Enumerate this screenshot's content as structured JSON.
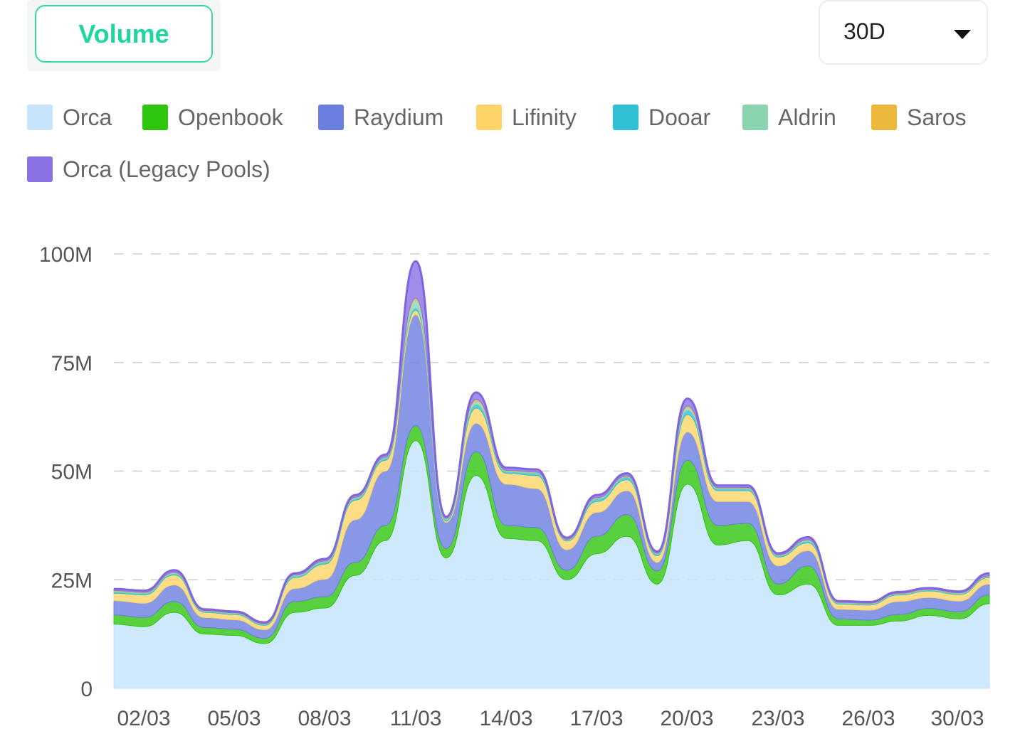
{
  "tabs": {
    "active_label": "Volume"
  },
  "range_select": {
    "value": "30D"
  },
  "icons": {
    "dropdown": "caret-down-icon"
  },
  "colors": {
    "accent": "#21d5a0",
    "Orca": "#c6e4fb",
    "Openbook": "#2fc60f",
    "Raydium": "#6a7ee0",
    "Lifinity": "#fcd467",
    "Dooar": "#2fc0d6",
    "Aldrin": "#8bd4b0",
    "Saros": "#ebb83c",
    "Orca (Legacy Pools)": "#8b71e6"
  },
  "chart_data": {
    "type": "area",
    "stacked": true,
    "title": "",
    "xlabel": "",
    "ylabel": "",
    "ylim": [
      0,
      100000000
    ],
    "yticks": [
      {
        "value": 0,
        "label": "0"
      },
      {
        "value": 25000000,
        "label": "25M"
      },
      {
        "value": 50000000,
        "label": "50M"
      },
      {
        "value": 75000000,
        "label": "75M"
      },
      {
        "value": 100000000,
        "label": "100M"
      }
    ],
    "xtick_labels": [
      "02/03",
      "05/03",
      "08/03",
      "11/03",
      "14/03",
      "17/03",
      "20/03",
      "23/03",
      "26/03",
      "30/03"
    ],
    "grid": "horizontal dashed",
    "legend": "top",
    "x": [
      "01/03",
      "02/03",
      "03/03",
      "04/03",
      "05/03",
      "06/03",
      "07/03",
      "08/03",
      "09/03",
      "10/03",
      "11/03",
      "12/03",
      "13/03",
      "14/03",
      "15/03",
      "16/03",
      "17/03",
      "18/03",
      "19/03",
      "20/03",
      "21/03",
      "22/03",
      "23/03",
      "24/03",
      "25/03",
      "26/03",
      "27/03",
      "28/03",
      "29/03",
      "30/03"
    ],
    "series": [
      {
        "name": "Orca",
        "values": [
          14.8,
          14.2,
          17.5,
          12.5,
          12.2,
          10.3,
          17.5,
          18.5,
          26,
          34,
          57,
          30,
          49,
          34.5,
          34,
          25,
          31,
          35,
          24,
          47,
          33,
          34,
          21.5,
          24,
          14.5,
          14.5,
          15.5,
          16.8,
          16,
          19.5
        ]
      },
      {
        "name": "Openbook",
        "values": [
          2.1,
          2.1,
          2.5,
          1.5,
          1.4,
          1.2,
          2.5,
          2.6,
          3,
          3.5,
          3.5,
          2.2,
          5.5,
          3,
          3,
          2.2,
          4,
          5,
          3,
          5.5,
          4.5,
          4,
          2.5,
          4.2,
          1.5,
          1.2,
          1.5,
          1.6,
          1.6,
          2
        ]
      },
      {
        "name": "Raydium",
        "values": [
          3.3,
          3.3,
          3.8,
          2.3,
          2.2,
          2,
          3,
          4,
          9.8,
          12.5,
          25.5,
          6,
          6.5,
          9.5,
          9,
          4.7,
          5.5,
          5.5,
          2,
          6.5,
          5.5,
          5,
          4.2,
          3.5,
          2.2,
          2.3,
          3,
          2.5,
          2.5,
          2.5
        ]
      },
      {
        "name": "Lifinity",
        "values": [
          1.7,
          1.9,
          2.3,
          1.2,
          1.2,
          1,
          2.5,
          3.5,
          4.5,
          2.5,
          1,
          0.3,
          3.5,
          2.5,
          3,
          2,
          2.5,
          2.5,
          1.5,
          4,
          2.5,
          2.5,
          2,
          1.8,
          1.2,
          1.2,
          1.5,
          1.5,
          1.5,
          1.5
        ]
      },
      {
        "name": "Dooar",
        "values": [
          0.3,
          0.3,
          0.3,
          0.2,
          0.2,
          0.2,
          0.3,
          0.4,
          0.4,
          0.4,
          0.5,
          0.3,
          0.8,
          0.4,
          0.5,
          0.2,
          0.6,
          0.6,
          0.4,
          1,
          0.4,
          0.4,
          0.3,
          0.4,
          0.2,
          0.2,
          0.2,
          0.2,
          0.2,
          0.2
        ]
      },
      {
        "name": "Aldrin",
        "values": [
          0.2,
          0.2,
          0.2,
          0.1,
          0.1,
          0.1,
          0.2,
          0.2,
          0.2,
          0.2,
          2,
          0.2,
          0.9,
          0.2,
          0.2,
          0.1,
          0.2,
          0.2,
          0.1,
          0.7,
          0.2,
          0.2,
          0.1,
          0.2,
          0.1,
          0.1,
          0.1,
          0.1,
          0.1,
          0.1
        ]
      },
      {
        "name": "Saros",
        "values": [
          0.1,
          0.1,
          0.1,
          0.1,
          0.1,
          0.1,
          0.1,
          0.1,
          0.1,
          0.1,
          0.3,
          0.1,
          0.3,
          0.1,
          0.1,
          0.1,
          0.1,
          0.1,
          0.1,
          0.3,
          0.1,
          0.1,
          0.1,
          0.1,
          0.1,
          0.1,
          0.1,
          0.1,
          0.1,
          0.1
        ]
      },
      {
        "name": "Orca (Legacy Pools)",
        "values": [
          0.4,
          0.4,
          0.5,
          0.3,
          0.3,
          0.3,
          0.4,
          0.5,
          0.5,
          0.6,
          8.5,
          0.4,
          1.6,
          0.6,
          0.6,
          0.4,
          0.6,
          0.6,
          0.4,
          1.7,
          0.5,
          0.5,
          0.4,
          0.6,
          0.3,
          0.3,
          0.3,
          0.3,
          0.3,
          0.6
        ]
      }
    ],
    "value_unit": "M"
  }
}
